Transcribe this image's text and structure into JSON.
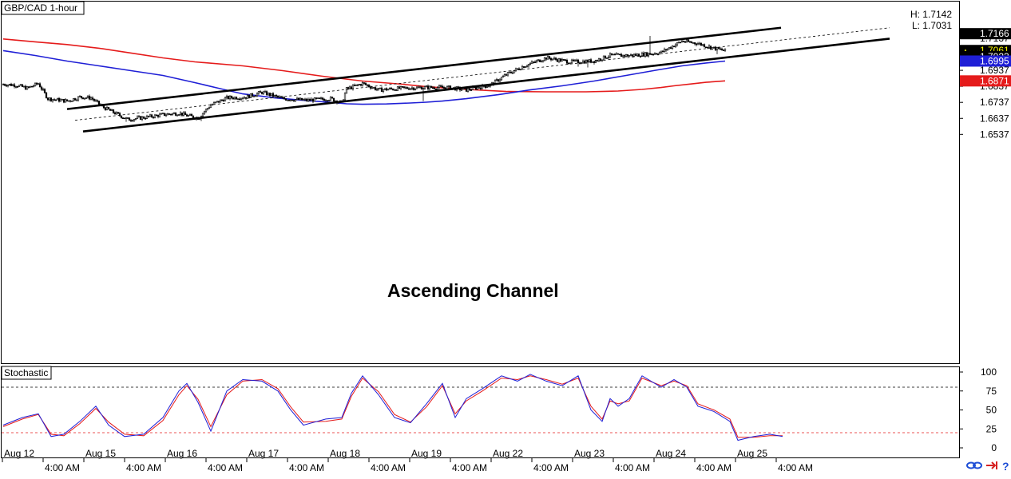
{
  "chart_data": {
    "type": "candlestick",
    "title": "GBP/CAD 1-hour",
    "hl": {
      "high": "H: 1.7142",
      "low": "L: 1.7031"
    },
    "annotation": "Ascending Channel",
    "yticks": [
      "1.7137",
      "1.7037",
      "1.6937",
      "1.6837",
      "1.6737",
      "1.6637",
      "1.6537"
    ],
    "price_tags": [
      {
        "value": "1.7166",
        "bg": "#000000",
        "fg": "#ffffff",
        "marker": ""
      },
      {
        "value": "1.7061",
        "bg": "#000000",
        "fg": "#f5f500",
        "marker": "▲"
      },
      {
        "value": "1.7023",
        "bg": "#000000",
        "fg": "#ffffff",
        "marker": ""
      },
      {
        "value": "1.6995",
        "bg": "#1f1fd6",
        "fg": "#ffffff",
        "marker": ""
      },
      {
        "value": "1.6871",
        "bg": "#e51b1b",
        "fg": "#ffffff",
        "marker": ""
      }
    ],
    "xticks": [
      "Aug 12",
      "4:00 AM",
      "Aug 15",
      "4:00 AM",
      "Aug 16",
      "4:00 AM",
      "Aug 17",
      "4:00 AM",
      "Aug 18",
      "4:00 AM",
      "Aug 19",
      "4:00 AM",
      "Aug 22",
      "4:00 AM",
      "Aug 23",
      "4:00 AM",
      "Aug 24",
      "4:00 AM",
      "Aug 25",
      "4:00 AM"
    ],
    "ma_red": [
      [
        0,
        1.7133
      ],
      [
        20,
        1.7115
      ],
      [
        40,
        1.7098
      ],
      [
        60,
        1.7075
      ],
      [
        80,
        1.7045
      ],
      [
        100,
        1.7015
      ],
      [
        120,
        1.699
      ],
      [
        150,
        1.6965
      ],
      [
        175,
        1.6935
      ],
      [
        200,
        1.69
      ],
      [
        225,
        1.687
      ],
      [
        250,
        1.685
      ],
      [
        265,
        1.6835
      ],
      [
        290,
        1.6818
      ],
      [
        315,
        1.6805
      ],
      [
        340,
        1.6803
      ],
      [
        365,
        1.6803
      ],
      [
        385,
        1.6808
      ],
      [
        400,
        1.6818
      ],
      [
        412,
        1.683
      ],
      [
        420,
        1.684
      ],
      [
        430,
        1.6851
      ],
      [
        440,
        1.6862
      ],
      [
        452,
        1.6871
      ]
    ],
    "ma_blue": [
      [
        0,
        1.706
      ],
      [
        20,
        1.703
      ],
      [
        40,
        1.6995
      ],
      [
        60,
        1.6965
      ],
      [
        80,
        1.6935
      ],
      [
        100,
        1.6905
      ],
      [
        120,
        1.686
      ],
      [
        135,
        1.6825
      ],
      [
        150,
        1.679
      ],
      [
        170,
        1.6765
      ],
      [
        190,
        1.6748
      ],
      [
        205,
        1.6737
      ],
      [
        215,
        1.6728
      ],
      [
        225,
        1.6725
      ],
      [
        240,
        1.6727
      ],
      [
        255,
        1.6733
      ],
      [
        265,
        1.6738
      ],
      [
        275,
        1.6745
      ],
      [
        290,
        1.676
      ],
      [
        310,
        1.6785
      ],
      [
        330,
        1.6815
      ],
      [
        350,
        1.684
      ],
      [
        370,
        1.687
      ],
      [
        390,
        1.6905
      ],
      [
        410,
        1.694
      ],
      [
        425,
        1.6965
      ],
      [
        440,
        1.6983
      ],
      [
        452,
        1.6995
      ]
    ],
    "channel_upper": [
      [
        40,
        1.6695
      ],
      [
        487,
        1.7203
      ]
    ],
    "channel_lower": [
      [
        50,
        1.6555
      ],
      [
        555,
        1.7135
      ]
    ],
    "channel_mid": [
      [
        45,
        1.6625
      ],
      [
        555,
        1.7203
      ]
    ],
    "candles": {
      "n": 453,
      "open": 1.685,
      "anchors": [
        [
          0,
          1.685
        ],
        [
          8,
          1.6845
        ],
        [
          15,
          1.6825
        ],
        [
          22,
          1.6855
        ],
        [
          28,
          1.676
        ],
        [
          40,
          1.6745
        ],
        [
          48,
          1.677
        ],
        [
          55,
          1.6765
        ],
        [
          62,
          1.671
        ],
        [
          72,
          1.666
        ],
        [
          78,
          1.663
        ],
        [
          90,
          1.6645
        ],
        [
          100,
          1.666
        ],
        [
          110,
          1.667
        ],
        [
          115,
          1.6655
        ],
        [
          122,
          1.664
        ],
        [
          130,
          1.672
        ],
        [
          140,
          1.6765
        ],
        [
          152,
          1.677
        ],
        [
          162,
          1.68
        ],
        [
          175,
          1.676
        ],
        [
          190,
          1.675
        ],
        [
          205,
          1.676
        ],
        [
          212,
          1.6735
        ],
        [
          215,
          1.682
        ],
        [
          225,
          1.6855
        ],
        [
          235,
          1.6815
        ],
        [
          250,
          1.6825
        ],
        [
          262,
          1.683
        ],
        [
          278,
          1.683
        ],
        [
          290,
          1.6815
        ],
        [
          305,
          1.6845
        ],
        [
          315,
          1.691
        ],
        [
          325,
          1.696
        ],
        [
          340,
          1.7015
        ],
        [
          355,
          1.699
        ],
        [
          370,
          1.6995
        ],
        [
          380,
          1.703
        ],
        [
          392,
          1.703
        ],
        [
          405,
          1.704
        ],
        [
          412,
          1.705
        ],
        [
          425,
          1.712
        ],
        [
          435,
          1.7105
        ],
        [
          445,
          1.7075
        ],
        [
          452,
          1.706
        ]
      ],
      "spikes": [
        [
          77,
          1.6615
        ],
        [
          124,
          1.662
        ],
        [
          263,
          1.6745
        ],
        [
          360,
          1.696
        ],
        [
          366,
          1.6955
        ],
        [
          405,
          1.7152
        ],
        [
          447,
          1.7038
        ]
      ]
    },
    "stochastic": {
      "title": "Stochastic",
      "yticks": [
        "100",
        "75",
        "50",
        "25",
        "0"
      ],
      "levels": [
        80,
        20
      ],
      "k": [
        [
          0,
          30
        ],
        [
          12,
          40
        ],
        [
          22,
          45
        ],
        [
          30,
          15
        ],
        [
          38,
          18
        ],
        [
          48,
          35
        ],
        [
          58,
          55
        ],
        [
          66,
          30
        ],
        [
          76,
          15
        ],
        [
          88,
          18
        ],
        [
          100,
          40
        ],
        [
          110,
          75
        ],
        [
          115,
          85
        ],
        [
          122,
          60
        ],
        [
          130,
          22
        ],
        [
          140,
          75
        ],
        [
          150,
          90
        ],
        [
          162,
          88
        ],
        [
          172,
          75
        ],
        [
          180,
          50
        ],
        [
          188,
          30
        ],
        [
          202,
          38
        ],
        [
          212,
          40
        ],
        [
          218,
          72
        ],
        [
          225,
          95
        ],
        [
          235,
          70
        ],
        [
          245,
          40
        ],
        [
          255,
          33
        ],
        [
          265,
          58
        ],
        [
          275,
          85
        ],
        [
          283,
          40
        ],
        [
          290,
          65
        ],
        [
          300,
          78
        ],
        [
          312,
          95
        ],
        [
          322,
          88
        ],
        [
          330,
          97
        ],
        [
          340,
          88
        ],
        [
          350,
          82
        ],
        [
          360,
          95
        ],
        [
          368,
          50
        ],
        [
          375,
          35
        ],
        [
          380,
          65
        ],
        [
          385,
          55
        ],
        [
          392,
          65
        ],
        [
          400,
          95
        ],
        [
          412,
          80
        ],
        [
          420,
          90
        ],
        [
          428,
          80
        ],
        [
          435,
          55
        ],
        [
          445,
          48
        ],
        [
          455,
          35
        ],
        [
          460,
          10
        ],
        [
          470,
          15
        ],
        [
          480,
          18
        ],
        [
          488,
          15
        ]
      ],
      "d": [
        [
          0,
          28
        ],
        [
          12,
          38
        ],
        [
          22,
          44
        ],
        [
          30,
          18
        ],
        [
          38,
          16
        ],
        [
          48,
          32
        ],
        [
          58,
          52
        ],
        [
          66,
          34
        ],
        [
          76,
          18
        ],
        [
          88,
          16
        ],
        [
          100,
          36
        ],
        [
          110,
          70
        ],
        [
          115,
          82
        ],
        [
          122,
          64
        ],
        [
          130,
          28
        ],
        [
          140,
          70
        ],
        [
          150,
          88
        ],
        [
          162,
          90
        ],
        [
          172,
          78
        ],
        [
          180,
          54
        ],
        [
          188,
          34
        ],
        [
          202,
          35
        ],
        [
          212,
          38
        ],
        [
          218,
          68
        ],
        [
          225,
          92
        ],
        [
          235,
          74
        ],
        [
          245,
          44
        ],
        [
          255,
          34
        ],
        [
          265,
          54
        ],
        [
          275,
          82
        ],
        [
          283,
          45
        ],
        [
          290,
          62
        ],
        [
          300,
          75
        ],
        [
          312,
          92
        ],
        [
          322,
          90
        ],
        [
          330,
          95
        ],
        [
          340,
          90
        ],
        [
          350,
          84
        ],
        [
          360,
          92
        ],
        [
          368,
          55
        ],
        [
          375,
          38
        ],
        [
          380,
          62
        ],
        [
          385,
          58
        ],
        [
          392,
          62
        ],
        [
          400,
          92
        ],
        [
          412,
          82
        ],
        [
          420,
          88
        ],
        [
          428,
          82
        ],
        [
          435,
          58
        ],
        [
          445,
          50
        ],
        [
          455,
          38
        ],
        [
          460,
          14
        ],
        [
          470,
          14
        ],
        [
          480,
          16
        ],
        [
          488,
          16
        ]
      ]
    }
  }
}
